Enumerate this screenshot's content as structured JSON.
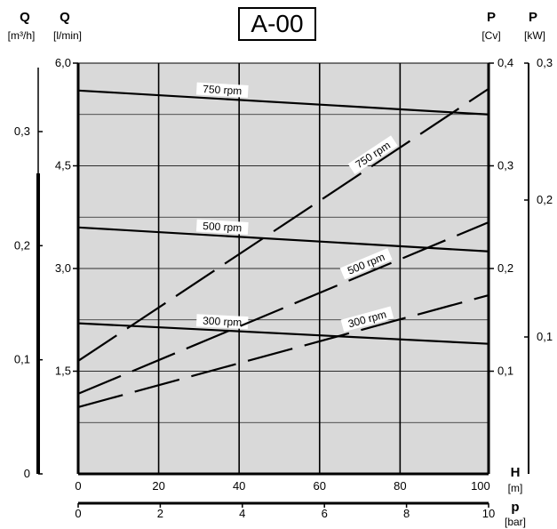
{
  "title": "A-00",
  "chart_data": {
    "type": "line",
    "title": "A-00",
    "x_axes": {
      "H": {
        "label": "H",
        "unit": "[m]",
        "range": [
          0,
          102
        ],
        "ticks": [
          0,
          20,
          40,
          60,
          80,
          100
        ]
      },
      "p": {
        "label": "p",
        "unit": "[bar]",
        "range": [
          0,
          10
        ],
        "ticks": [
          0,
          2,
          4,
          6,
          8,
          10
        ]
      }
    },
    "y_axes": {
      "Q_m3h": {
        "label": "Q",
        "unit": "[m³/h]",
        "range": [
          0,
          0.36
        ],
        "ticks": [
          "0",
          "0,1",
          "0,2",
          "0,3"
        ],
        "tick_values": [
          0,
          0.1,
          0.2,
          0.3
        ]
      },
      "Q_lmin": {
        "label": "Q",
        "unit": "[l/min]",
        "range": [
          0,
          6.0
        ],
        "ticks": [
          "1,5",
          "3,0",
          "4,5",
          "6,0"
        ],
        "tick_values": [
          1.5,
          3.0,
          4.5,
          6.0
        ]
      },
      "P_cv": {
        "label": "P",
        "unit": "[Cv]",
        "range": [
          0,
          0.4
        ],
        "ticks": [
          "0,1",
          "0,2",
          "0,3",
          "0,4"
        ],
        "tick_values": [
          0.1,
          0.2,
          0.3,
          0.4
        ]
      },
      "P_kw": {
        "label": "P",
        "unit": "[kW]",
        "range": [
          0,
          0.3
        ],
        "ticks": [
          "0,1",
          "0,2",
          "0,3"
        ],
        "tick_values": [
          0.1,
          0.2,
          0.3
        ]
      }
    },
    "flow_series": [
      {
        "name": "750 rpm",
        "axis": "Q_lmin",
        "x": [
          0,
          102
        ],
        "y": [
          5.6,
          5.25
        ]
      },
      {
        "name": "500 rpm",
        "axis": "Q_lmin",
        "x": [
          0,
          102
        ],
        "y": [
          3.6,
          3.25
        ]
      },
      {
        "name": "300 rpm",
        "axis": "Q_lmin",
        "x": [
          0,
          102
        ],
        "y": [
          2.2,
          1.9
        ]
      }
    ],
    "power_series": [
      {
        "name": "750 rpm",
        "axis": "P_cv",
        "x": [
          0,
          102
        ],
        "y": [
          0.11,
          0.375
        ]
      },
      {
        "name": "500 rpm",
        "axis": "P_cv",
        "x": [
          0,
          102
        ],
        "y": [
          0.078,
          0.245
        ]
      },
      {
        "name": "300 rpm",
        "axis": "P_cv",
        "x": [
          0,
          102
        ],
        "y": [
          0.065,
          0.174
        ]
      }
    ],
    "grid": true,
    "background": "#d9d9d9"
  }
}
